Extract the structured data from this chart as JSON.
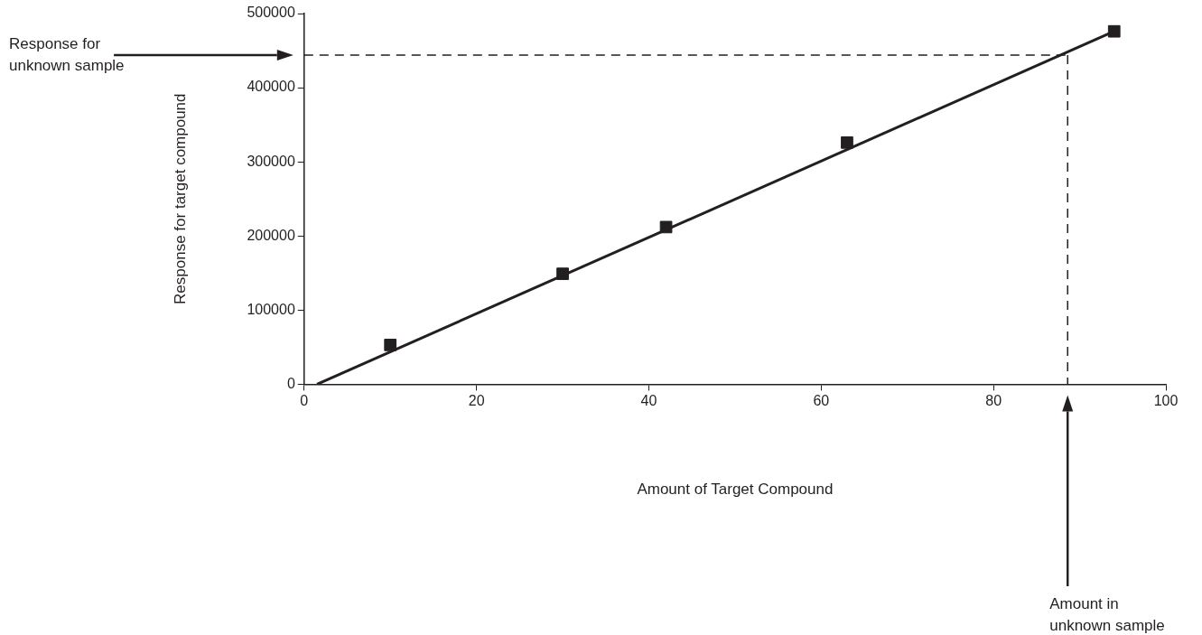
{
  "chart_data": {
    "type": "scatter",
    "xlabel": "Amount of Target Compound",
    "ylabel": "Response for target compound",
    "xlim": [
      0,
      100
    ],
    "xticks": [
      0,
      20,
      40,
      60,
      80,
      100
    ],
    "ylim": [
      0,
      500000
    ],
    "yticks": [
      0,
      100000,
      200000,
      300000,
      400000,
      500000
    ],
    "marker": "square",
    "legend": false,
    "grid": false,
    "series": [
      {
        "type": "scatter",
        "color": "#231f20",
        "x": [
          10,
          30,
          42,
          63,
          94
        ],
        "values": [
          53000,
          149000,
          212000,
          326000,
          476000
        ]
      },
      {
        "type": "line",
        "color": "#231f20",
        "x": [
          1.5,
          94
        ],
        "values": [
          0,
          476000
        ],
        "marker": "none",
        "line_style": "solid"
      }
    ],
    "ref_lines": [
      {
        "axis": "y",
        "value": 444000,
        "line_style": "dashed",
        "color": "#231f20"
      },
      {
        "axis": "x",
        "value": 88.6,
        "line_style": "dashed",
        "color": "#231f20"
      }
    ],
    "annotations": [
      "Response for unknown sample",
      "Amount in unknown sample"
    ]
  }
}
